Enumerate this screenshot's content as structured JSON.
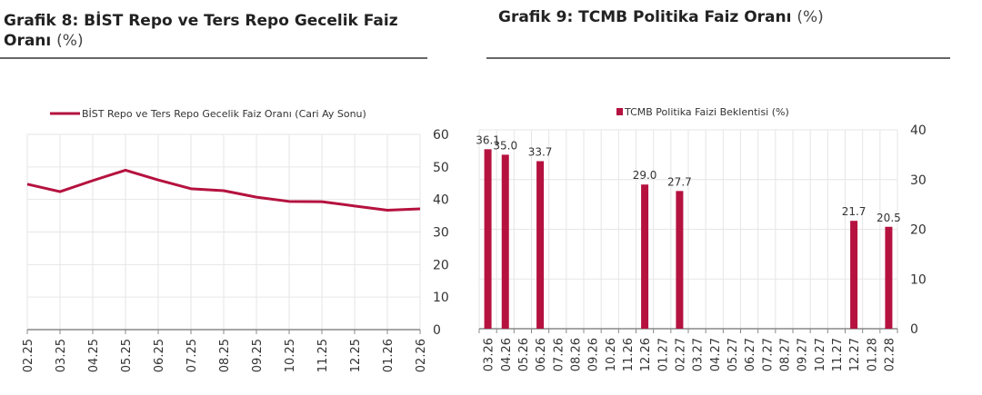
{
  "colors": {
    "series": "#b5123f",
    "grid": "#e6e6e6",
    "axis": "#888888"
  },
  "chart_data": [
    {
      "type": "line",
      "title": "Grafik 8:  BİST Repo ve Ters Repo Gecelik Faiz",
      "title_line2": "Oranı",
      "title_unit": "(%)",
      "legend": "top",
      "grid": true,
      "ylim": [
        0,
        60
      ],
      "yticks": [
        "0",
        "10",
        "20",
        "30",
        "40",
        "50",
        "60"
      ],
      "yaxis_side": "right",
      "categories": [
        "02.25",
        "03.25",
        "04.25",
        "05.25",
        "06.25",
        "07.25",
        "08.25",
        "09.25",
        "10.25",
        "11.25",
        "12.25",
        "01.26",
        "02.26"
      ],
      "series": [
        {
          "name": "BİST Repo ve Ters Repo Gecelik Faiz Oranı (Cari Ay Sonu)",
          "values": [
            44.7,
            42.4,
            45.8,
            49.0,
            46.0,
            43.3,
            42.7,
            40.7,
            39.4,
            39.3,
            38.0,
            36.7,
            37.1
          ]
        }
      ]
    },
    {
      "type": "bar",
      "title": "Grafik 9: TCMB Politika Faiz Oranı",
      "title_unit": "(%)",
      "legend": "top",
      "grid": true,
      "ylim": [
        0,
        40
      ],
      "yticks": [
        "0",
        "10",
        "20",
        "30",
        "40"
      ],
      "yaxis_side": "right",
      "categories": [
        "03.26",
        "04.26",
        "05.26",
        "06.26",
        "07.26",
        "08.26",
        "09.26",
        "10.26",
        "11.26",
        "12.26",
        "01.27",
        "02.27",
        "03.27",
        "04.27",
        "05.27",
        "06.27",
        "07.27",
        "08.27",
        "09.27",
        "10.27",
        "11.27",
        "12.27",
        "01.28",
        "02.28"
      ],
      "series": [
        {
          "name": "TCMB Politika Faizi Beklentisi (%)",
          "values": [
            36.1,
            35.0,
            null,
            33.7,
            null,
            null,
            null,
            null,
            null,
            29.0,
            null,
            27.7,
            null,
            null,
            null,
            null,
            null,
            null,
            null,
            null,
            null,
            21.7,
            null,
            20.5
          ],
          "labels": [
            "36.1",
            "35.0",
            "",
            "33.7",
            "",
            "",
            "",
            "",
            "",
            "29.0",
            "",
            "27.7",
            "",
            "",
            "",
            "",
            "",
            "",
            "",
            "",
            "",
            "21.7",
            "",
            "20.5"
          ]
        }
      ]
    }
  ]
}
